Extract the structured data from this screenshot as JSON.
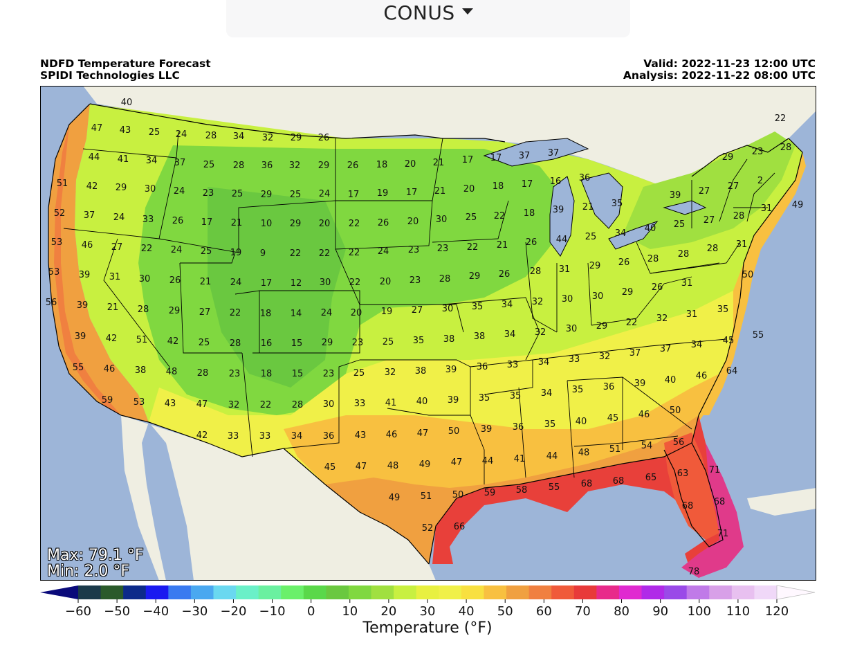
{
  "region_selector": {
    "label": "CONUS",
    "icon": "caret-down-icon"
  },
  "header": {
    "title": "NDFD Temperature Forecast",
    "provider": "SPIDI Technologies LLC",
    "valid": "Valid: 2022-11-23 12:00 UTC",
    "analysis": "Analysis: 2022-11-22 08:00 UTC"
  },
  "stats": {
    "max": "Max: 79.1 °F",
    "min": "Min: 2.0 °F"
  },
  "colorbar": {
    "label": "Temperature (°F)",
    "ticks": [
      "−60",
      "−50",
      "−40",
      "−30",
      "−20",
      "−10",
      "0",
      "10",
      "20",
      "30",
      "40",
      "50",
      "60",
      "70",
      "80",
      "90",
      "100",
      "110",
      "120"
    ],
    "colors": [
      "#0a0a7a",
      "#1b3a4a",
      "#2a5a2a",
      "#0c2a8a",
      "#1a1af0",
      "#3a7af0",
      "#4aa8f0",
      "#6ad8f0",
      "#6af0c8",
      "#6af0a0",
      "#6af06a",
      "#5ad84a",
      "#6ac840",
      "#80d840",
      "#a0e040",
      "#c8f040",
      "#e8f040",
      "#f0f048",
      "#f8e040",
      "#f8c040",
      "#f0a040",
      "#f08040",
      "#f05a3a",
      "#e83a3a",
      "#e82a8a",
      "#e02ad0",
      "#b02ae8",
      "#9a4ae8",
      "#c07ae8",
      "#d8a0e8",
      "#e8c0f0",
      "#f0d8f8",
      "#fff8ff"
    ]
  },
  "points": [
    [
      183,
      147,
      "40"
    ],
    [
      140,
      184,
      "47"
    ],
    [
      181,
      187,
      "43"
    ],
    [
      223,
      190,
      "25"
    ],
    [
      262,
      193,
      "24"
    ],
    [
      305,
      195,
      "28"
    ],
    [
      345,
      196,
      "34"
    ],
    [
      387,
      198,
      "32"
    ],
    [
      428,
      198,
      "29"
    ],
    [
      468,
      198,
      "26"
    ],
    [
      1128,
      170,
      "22"
    ],
    [
      1136,
      212,
      "28"
    ],
    [
      1095,
      218,
      "23"
    ],
    [
      1052,
      226,
      "29"
    ],
    [
      136,
      226,
      "44"
    ],
    [
      178,
      229,
      "41"
    ],
    [
      219,
      231,
      "34"
    ],
    [
      260,
      234,
      "37"
    ],
    [
      302,
      237,
      "25"
    ],
    [
      345,
      238,
      "28"
    ],
    [
      386,
      238,
      "36"
    ],
    [
      426,
      238,
      "32"
    ],
    [
      468,
      238,
      "29"
    ],
    [
      510,
      238,
      "26"
    ],
    [
      552,
      237,
      "18"
    ],
    [
      593,
      236,
      "20"
    ],
    [
      634,
      234,
      "21"
    ],
    [
      676,
      230,
      "17"
    ],
    [
      717,
      227,
      "17"
    ],
    [
      758,
      224,
      "37"
    ],
    [
      800,
      220,
      "37"
    ],
    [
      1099,
      260,
      "2"
    ],
    [
      90,
      264,
      "51"
    ],
    [
      133,
      268,
      "42"
    ],
    [
      175,
      270,
      "29"
    ],
    [
      217,
      272,
      "30"
    ],
    [
      259,
      275,
      "24"
    ],
    [
      301,
      278,
      "23"
    ],
    [
      343,
      279,
      "25"
    ],
    [
      385,
      280,
      "29"
    ],
    [
      427,
      280,
      "25"
    ],
    [
      469,
      279,
      "24"
    ],
    [
      511,
      280,
      "17"
    ],
    [
      553,
      278,
      "19"
    ],
    [
      595,
      277,
      "17"
    ],
    [
      636,
      275,
      "21"
    ],
    [
      678,
      272,
      "20"
    ],
    [
      720,
      268,
      "18"
    ],
    [
      762,
      265,
      "17"
    ],
    [
      803,
      261,
      "16"
    ],
    [
      845,
      256,
      "36"
    ],
    [
      976,
      281,
      "39"
    ],
    [
      1018,
      275,
      "27"
    ],
    [
      1060,
      268,
      "27"
    ],
    [
      1153,
      295,
      "49"
    ],
    [
      1108,
      300,
      "31"
    ],
    [
      86,
      307,
      "52"
    ],
    [
      129,
      310,
      "37"
    ],
    [
      172,
      313,
      "24"
    ],
    [
      214,
      316,
      "33"
    ],
    [
      257,
      318,
      "26"
    ],
    [
      299,
      320,
      "17"
    ],
    [
      342,
      321,
      "21"
    ],
    [
      385,
      322,
      "10"
    ],
    [
      427,
      322,
      "29"
    ],
    [
      469,
      322,
      "20"
    ],
    [
      512,
      322,
      "22"
    ],
    [
      554,
      321,
      "26"
    ],
    [
      597,
      319,
      "20"
    ],
    [
      638,
      316,
      "30"
    ],
    [
      681,
      313,
      "25"
    ],
    [
      722,
      311,
      "22"
    ],
    [
      765,
      307,
      "18"
    ],
    [
      807,
      302,
      "39"
    ],
    [
      850,
      298,
      "21"
    ],
    [
      892,
      293,
      "35"
    ],
    [
      1068,
      311,
      "28"
    ],
    [
      1025,
      317,
      "27"
    ],
    [
      982,
      323,
      "25"
    ],
    [
      940,
      329,
      "40"
    ],
    [
      897,
      336,
      "34"
    ],
    [
      82,
      349,
      "53"
    ],
    [
      126,
      353,
      "46"
    ],
    [
      169,
      356,
      "27"
    ],
    [
      212,
      358,
      "22"
    ],
    [
      255,
      360,
      "24"
    ],
    [
      298,
      362,
      "25"
    ],
    [
      341,
      364,
      "19"
    ],
    [
      380,
      365,
      "9"
    ],
    [
      427,
      365,
      "22"
    ],
    [
      469,
      365,
      "22"
    ],
    [
      512,
      364,
      "22"
    ],
    [
      554,
      362,
      "24"
    ],
    [
      598,
      360,
      "23"
    ],
    [
      640,
      358,
      "23"
    ],
    [
      683,
      356,
      "22"
    ],
    [
      726,
      353,
      "21"
    ],
    [
      768,
      349,
      "26"
    ],
    [
      812,
      345,
      "44"
    ],
    [
      854,
      341,
      "25"
    ],
    [
      1072,
      352,
      "31"
    ],
    [
      1030,
      358,
      "28"
    ],
    [
      988,
      366,
      "28"
    ],
    [
      944,
      373,
      "28"
    ],
    [
      902,
      378,
      "26"
    ],
    [
      860,
      383,
      "29"
    ],
    [
      816,
      388,
      "31"
    ],
    [
      774,
      391,
      "28"
    ],
    [
      78,
      392,
      "53"
    ],
    [
      122,
      396,
      "39"
    ],
    [
      166,
      399,
      "31"
    ],
    [
      209,
      402,
      "30"
    ],
    [
      253,
      404,
      "26"
    ],
    [
      297,
      406,
      "21"
    ],
    [
      341,
      407,
      "24"
    ],
    [
      385,
      408,
      "17"
    ],
    [
      428,
      408,
      "12"
    ],
    [
      470,
      407,
      "30"
    ],
    [
      513,
      407,
      "22"
    ],
    [
      557,
      406,
      "20"
    ],
    [
      600,
      404,
      "23"
    ],
    [
      643,
      402,
      "28"
    ],
    [
      686,
      398,
      "29"
    ],
    [
      729,
      395,
      "26"
    ],
    [
      1081,
      396,
      "50"
    ],
    [
      993,
      408,
      "31"
    ],
    [
      950,
      414,
      "26"
    ],
    [
      907,
      421,
      "29"
    ],
    [
      864,
      427,
      "30"
    ],
    [
      820,
      431,
      "30"
    ],
    [
      777,
      435,
      "32"
    ],
    [
      74,
      436,
      "56"
    ],
    [
      119,
      440,
      "39"
    ],
    [
      163,
      443,
      "21"
    ],
    [
      207,
      446,
      "28"
    ],
    [
      252,
      448,
      "29"
    ],
    [
      296,
      450,
      "27"
    ],
    [
      340,
      451,
      "22"
    ],
    [
      384,
      452,
      "18"
    ],
    [
      428,
      452,
      "14"
    ],
    [
      472,
      451,
      "24"
    ],
    [
      515,
      451,
      "20"
    ],
    [
      559,
      449,
      "19"
    ],
    [
      603,
      447,
      "27"
    ],
    [
      647,
      445,
      "30"
    ],
    [
      690,
      442,
      "35"
    ],
    [
      733,
      439,
      "34"
    ],
    [
      1045,
      446,
      "35"
    ],
    [
      1000,
      453,
      "31"
    ],
    [
      957,
      459,
      "32"
    ],
    [
      913,
      465,
      "22"
    ],
    [
      870,
      470,
      "29"
    ],
    [
      826,
      474,
      "30"
    ],
    [
      781,
      479,
      "32"
    ],
    [
      737,
      482,
      "34"
    ],
    [
      693,
      485,
      "38"
    ],
    [
      116,
      485,
      "39"
    ],
    [
      161,
      488,
      "42"
    ],
    [
      205,
      490,
      "51"
    ],
    [
      250,
      492,
      "42"
    ],
    [
      295,
      494,
      "25"
    ],
    [
      340,
      495,
      "28"
    ],
    [
      385,
      495,
      "16"
    ],
    [
      429,
      495,
      "15"
    ],
    [
      473,
      494,
      "29"
    ],
    [
      517,
      494,
      "23"
    ],
    [
      561,
      493,
      "25"
    ],
    [
      605,
      491,
      "35"
    ],
    [
      649,
      489,
      "38"
    ],
    [
      1096,
      483,
      "55"
    ],
    [
      1053,
      491,
      "45"
    ],
    [
      1007,
      497,
      "34"
    ],
    [
      962,
      503,
      "37"
    ],
    [
      918,
      509,
      "37"
    ],
    [
      874,
      514,
      "32"
    ],
    [
      830,
      518,
      "33"
    ],
    [
      786,
      522,
      "34"
    ],
    [
      741,
      526,
      "33"
    ],
    [
      697,
      529,
      "36"
    ],
    [
      113,
      530,
      "55"
    ],
    [
      158,
      532,
      "46"
    ],
    [
      203,
      534,
      "38"
    ],
    [
      248,
      536,
      "48"
    ],
    [
      293,
      538,
      "28"
    ],
    [
      339,
      539,
      "23"
    ],
    [
      385,
      539,
      "18"
    ],
    [
      430,
      539,
      "15"
    ],
    [
      475,
      539,
      "23"
    ],
    [
      519,
      538,
      "25"
    ],
    [
      564,
      537,
      "32"
    ],
    [
      608,
      535,
      "38"
    ],
    [
      652,
      533,
      "39"
    ],
    [
      1058,
      535,
      "64"
    ],
    [
      1014,
      542,
      "46"
    ],
    [
      969,
      548,
      "40"
    ],
    [
      925,
      553,
      "39"
    ],
    [
      880,
      558,
      "36"
    ],
    [
      835,
      562,
      "35"
    ],
    [
      790,
      567,
      "34"
    ],
    [
      745,
      571,
      "35"
    ],
    [
      700,
      574,
      "35"
    ],
    [
      155,
      577,
      "59"
    ],
    [
      201,
      580,
      "53"
    ],
    [
      246,
      582,
      "43"
    ],
    [
      292,
      583,
      "47"
    ],
    [
      338,
      584,
      "32"
    ],
    [
      384,
      584,
      "22"
    ],
    [
      430,
      584,
      "28"
    ],
    [
      475,
      583,
      "30"
    ],
    [
      520,
      582,
      "33"
    ],
    [
      565,
      581,
      "41"
    ],
    [
      610,
      579,
      "40"
    ],
    [
      655,
      577,
      "39"
    ],
    [
      976,
      592,
      "50"
    ],
    [
      931,
      598,
      "46"
    ],
    [
      886,
      603,
      "45"
    ],
    [
      840,
      608,
      "40"
    ],
    [
      795,
      612,
      "35"
    ],
    [
      749,
      616,
      "36"
    ],
    [
      703,
      619,
      "39"
    ],
    [
      292,
      628,
      "42"
    ],
    [
      337,
      629,
      "33"
    ],
    [
      383,
      629,
      "33"
    ],
    [
      429,
      629,
      "34"
    ],
    [
      475,
      629,
      "36"
    ],
    [
      521,
      628,
      "43"
    ],
    [
      566,
      627,
      "46"
    ],
    [
      611,
      625,
      "47"
    ],
    [
      656,
      622,
      "50"
    ],
    [
      981,
      638,
      "56"
    ],
    [
      935,
      643,
      "54"
    ],
    [
      889,
      648,
      "51"
    ],
    [
      844,
      653,
      "48"
    ],
    [
      798,
      658,
      "44"
    ],
    [
      751,
      662,
      "41"
    ],
    [
      705,
      665,
      "44"
    ],
    [
      477,
      674,
      "45"
    ],
    [
      522,
      673,
      "47"
    ],
    [
      568,
      672,
      "48"
    ],
    [
      614,
      670,
      "49"
    ],
    [
      660,
      667,
      "47"
    ],
    [
      1033,
      678,
      "71"
    ],
    [
      987,
      683,
      "63"
    ],
    [
      941,
      689,
      "65"
    ],
    [
      894,
      694,
      "68"
    ],
    [
      848,
      698,
      "68"
    ],
    [
      801,
      703,
      "55"
    ],
    [
      754,
      707,
      "58"
    ],
    [
      708,
      711,
      "59"
    ],
    [
      570,
      718,
      "49"
    ],
    [
      616,
      716,
      "51"
    ],
    [
      662,
      714,
      "50"
    ],
    [
      1040,
      724,
      "68"
    ],
    [
      994,
      730,
      "68"
    ],
    [
      618,
      762,
      "52"
    ],
    [
      664,
      760,
      "66"
    ],
    [
      1045,
      770,
      "71"
    ],
    [
      1003,
      825,
      "78"
    ]
  ]
}
